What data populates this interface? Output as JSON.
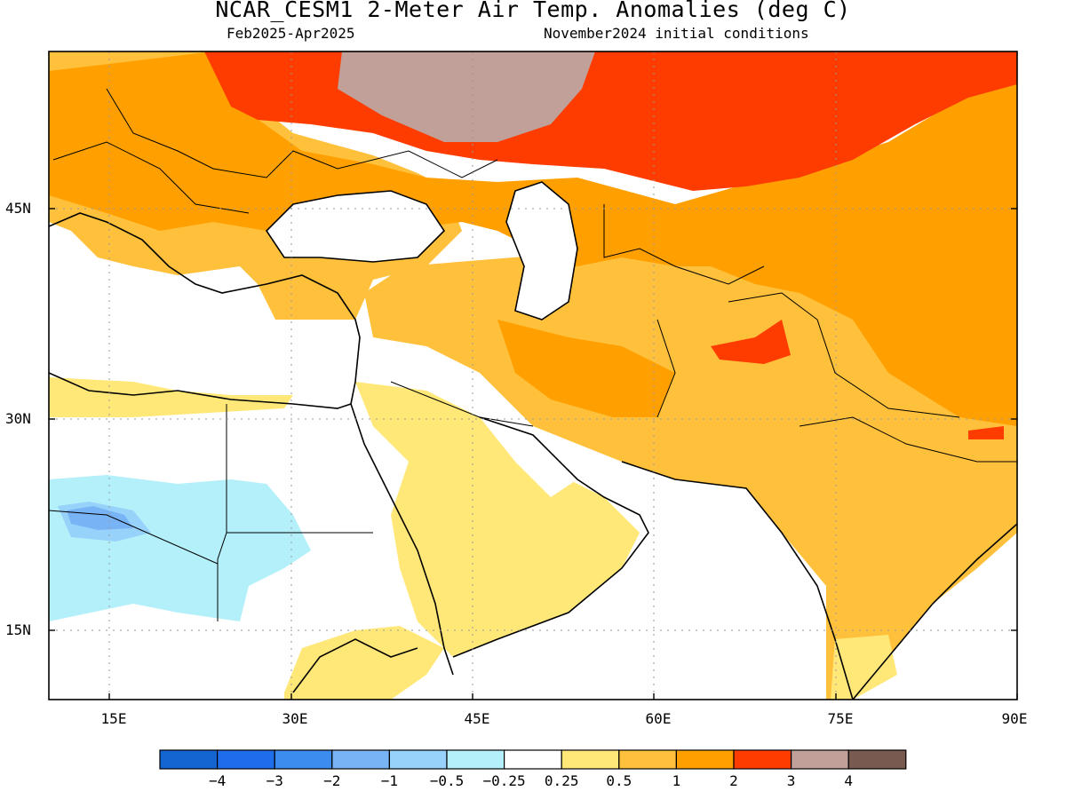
{
  "title": "NCAR_CESM1 2-Meter Air Temp. Anomalies (deg C)",
  "subtitle_left": "Feb2025-Apr2025",
  "subtitle_right": "November2024 initial conditions",
  "lat_labels": [
    "45N",
    "30N",
    "15N"
  ],
  "lon_labels": [
    "15E",
    "30E",
    "45E",
    "60E",
    "75E",
    "90E"
  ],
  "legend": {
    "colors": [
      "#1464d2",
      "#1e6eeb",
      "#3c8cf0",
      "#78b4f5",
      "#96d2fa",
      "#b4f0fa",
      "#ffffff",
      "#ffe878",
      "#ffc03c",
      "#ffa000",
      "#ff3c00",
      "#c0a098",
      "#785a50"
    ],
    "ticks": [
      "-4",
      "-3",
      "-2",
      "-1",
      "-0.5",
      "-0.25",
      "0.25",
      "0.5",
      "1",
      "2",
      "3",
      "4"
    ]
  }
}
